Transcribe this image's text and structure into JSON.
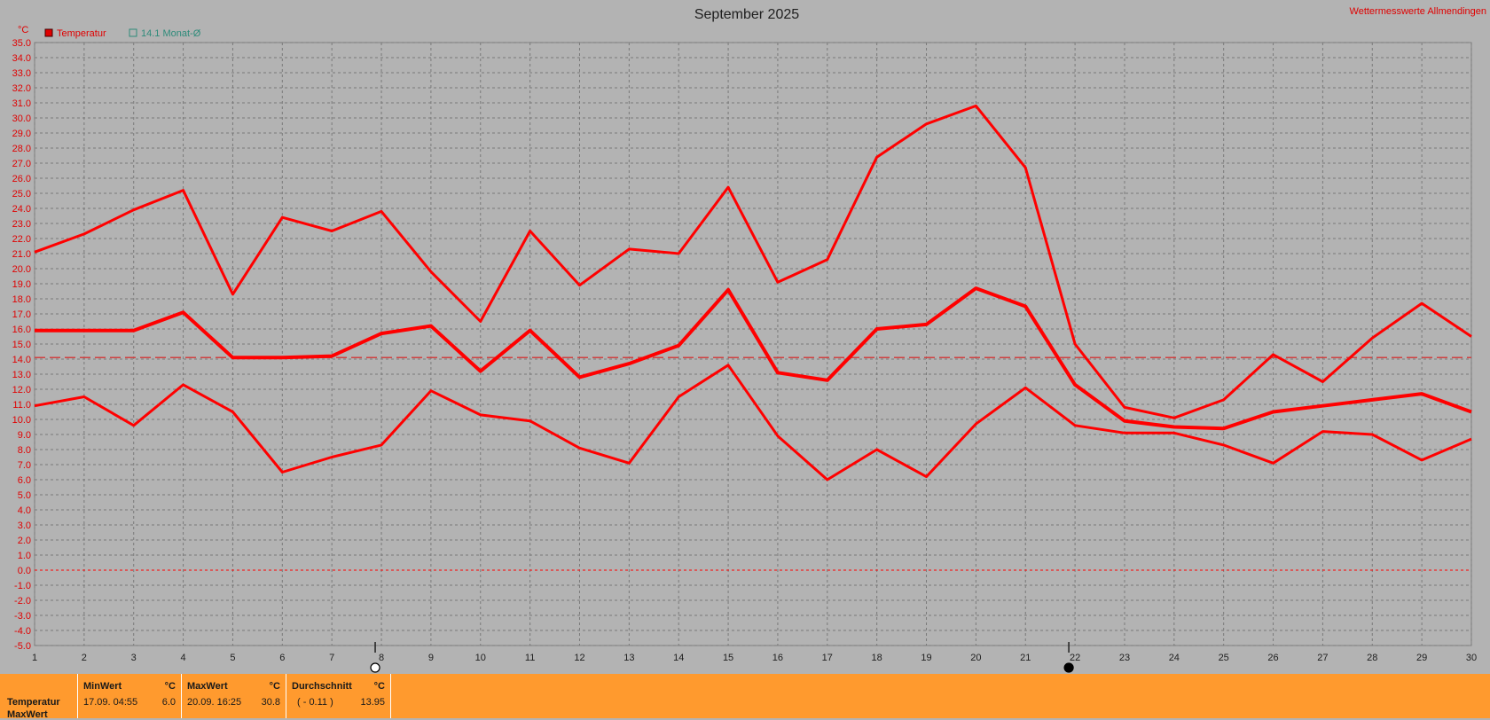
{
  "title": "September 2025",
  "site_label": "Wettermesswerte Allmendingen",
  "unit_label": "°C",
  "legend": [
    {
      "label": "Temperatur",
      "color": "#e00000",
      "marker": "filled-square"
    },
    {
      "label": "14.1 Monat-Ø",
      "color": "#2e8b7a",
      "marker": "hollow-square"
    }
  ],
  "chart_data": {
    "type": "line",
    "title": "September 2025",
    "xlabel": "",
    "ylabel": "°C",
    "x": [
      1,
      2,
      3,
      4,
      5,
      6,
      7,
      8,
      9,
      10,
      11,
      12,
      13,
      14,
      15,
      16,
      17,
      18,
      19,
      20,
      21,
      22,
      23,
      24,
      25,
      26,
      27,
      28,
      29,
      30
    ],
    "ylim": [
      -5.0,
      35.0
    ],
    "ytick_step": 1.0,
    "grid": true,
    "legend_placement": "top-left",
    "series": [
      {
        "role": "max",
        "color": "#ff0000",
        "values": [
          21.1,
          22.3,
          23.9,
          25.2,
          18.3,
          23.4,
          22.5,
          23.8,
          19.8,
          16.5,
          22.5,
          18.9,
          21.3,
          21.0,
          25.4,
          19.1,
          20.6,
          27.4,
          29.6,
          30.8,
          26.7,
          15.0,
          10.8,
          10.1,
          11.3,
          14.3,
          12.5,
          15.4,
          17.7,
          15.5
        ]
      },
      {
        "role": "mean",
        "color": "#ff0000",
        "values": [
          15.9,
          15.9,
          15.9,
          17.1,
          14.1,
          14.1,
          14.2,
          15.7,
          16.2,
          13.2,
          15.9,
          12.8,
          13.7,
          14.9,
          18.6,
          13.1,
          12.6,
          16.0,
          16.3,
          18.7,
          17.5,
          12.3,
          9.9,
          9.5,
          9.4,
          10.5,
          10.9,
          11.3,
          11.7,
          10.5
        ]
      },
      {
        "role": "min",
        "color": "#ff0000",
        "values": [
          10.9,
          11.5,
          9.6,
          12.3,
          10.5,
          6.5,
          7.5,
          8.3,
          11.9,
          10.3,
          9.9,
          8.1,
          7.1,
          11.5,
          13.6,
          8.9,
          6.0,
          8.0,
          6.2,
          9.7,
          12.1,
          9.6,
          9.1,
          9.1,
          8.3,
          7.1,
          9.2,
          9.0,
          7.3,
          8.7
        ]
      }
    ],
    "reference_lines": [
      {
        "name": "14.1 Monat-Ø",
        "value": 14.1,
        "style": "dashed",
        "color": "#d04040"
      },
      {
        "name": "zero",
        "value": 0.0,
        "style": "dotted",
        "color": "#ff0000"
      }
    ],
    "moon_phases": [
      {
        "day": 8,
        "phase": "full-moon"
      },
      {
        "day": 22,
        "phase": "new-moon"
      }
    ]
  },
  "summary": {
    "row_label_1": "Temperatur",
    "row_label_2": "MaxWert",
    "min": {
      "header": "MinWert",
      "unit": "°C",
      "date": "17.09.  04:55",
      "value": "6.0"
    },
    "max": {
      "header": "MaxWert",
      "unit": "°C",
      "date": "20.09.  16:25",
      "value": "30.8"
    },
    "avg": {
      "header": "Durchschnitt",
      "unit": "°C",
      "delta": "( - 0.11 )",
      "value": "13.95"
    }
  }
}
